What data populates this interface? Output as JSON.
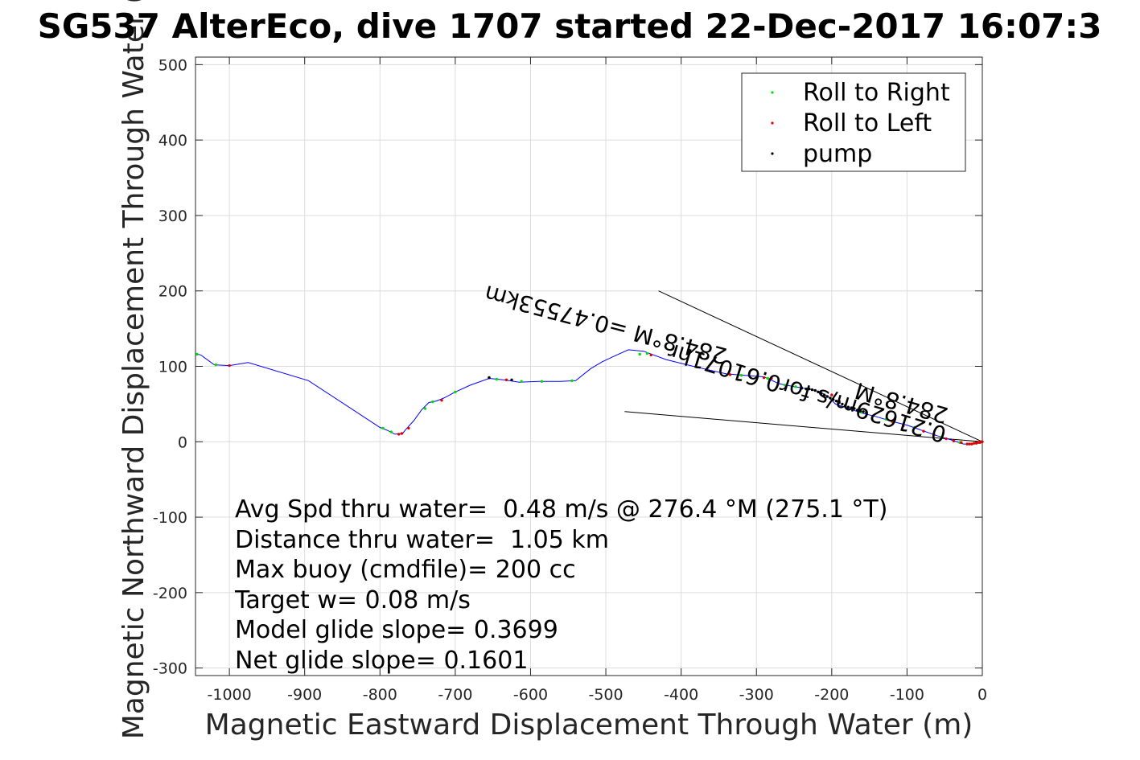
{
  "chart_data": {
    "type": "scatter",
    "title": "SG537 AlterEco, dive 1707 started 22-Dec-2017 16:07:3",
    "xlabel": "Magnetic Eastward Displacement Through Water (m)",
    "ylabel": "Magnetic Northward Displacement Through Water (",
    "xlim": [
      -1045,
      0
    ],
    "ylim": [
      -310,
      510
    ],
    "xticks": [
      -1000,
      -900,
      -800,
      -700,
      -600,
      -500,
      -400,
      -300,
      -200,
      -100,
      0
    ],
    "yticks": [
      500,
      400,
      300,
      200,
      100,
      0,
      -100,
      -200,
      -300
    ],
    "grid": true,
    "legend_position": "top-right",
    "legend": [
      {
        "label": "Roll to Right",
        "color": "#00e000"
      },
      {
        "label": "Roll to Left",
        "color": "#e00000"
      },
      {
        "label": "pump",
        "color": "#000000"
      }
    ],
    "series": [
      {
        "name": "track",
        "style": "line",
        "color": "#0000ff",
        "x": [
          -1045,
          -1038,
          -1020,
          -1000,
          -975,
          -895,
          -800,
          -790,
          -780,
          -770,
          -765,
          -755,
          -745,
          -735,
          -725,
          -715,
          -700,
          -680,
          -655,
          -635,
          -615,
          -590,
          -560,
          -540,
          -520,
          -505,
          -490,
          -470,
          -450,
          -420,
          -380,
          -340,
          -290,
          -270,
          -250,
          -230,
          -215,
          -205,
          -195,
          -180,
          -160,
          -140,
          -120,
          -100,
          -80,
          -60,
          -40,
          -25,
          -15,
          -8,
          -3,
          0
        ],
        "y": [
          117,
          115,
          102,
          101,
          105,
          81,
          19,
          15,
          10,
          11,
          17,
          28,
          42,
          52,
          54,
          58,
          66,
          75,
          84,
          82,
          79,
          80,
          80,
          81,
          97,
          106,
          113,
          122,
          120,
          109,
          99,
          90,
          86,
          77,
          73,
          70,
          66,
          60,
          50,
          45,
          38,
          33,
          27,
          22,
          15,
          8,
          2,
          -3,
          -3,
          -2,
          -1,
          0
        ]
      },
      {
        "name": "Roll to Right",
        "style": "points",
        "color": "#00e000",
        "x": [
          -1043,
          -1018,
          -796,
          -785,
          -740,
          -730,
          -700,
          -645,
          -612,
          -585,
          -545,
          -455,
          -445,
          -320,
          -285,
          -262,
          -248,
          -240,
          -172,
          -160,
          -128,
          -90,
          -55,
          -30
        ],
        "y": [
          116,
          102,
          18,
          13,
          44,
          53,
          66,
          83,
          80,
          80,
          81,
          116,
          117,
          88,
          84,
          75,
          73,
          72,
          43,
          39,
          30,
          19,
          6,
          -1
        ]
      },
      {
        "name": "Roll to Left",
        "style": "points",
        "color": "#e00000",
        "x": [
          -1000,
          -775,
          -771,
          -762,
          -718,
          -655,
          -632,
          -440,
          -335,
          -290,
          -280,
          -200,
          -190,
          -120,
          -105,
          -78,
          -64,
          -48,
          -38,
          -28,
          -20,
          -17,
          -14,
          -11,
          -8,
          -5,
          -3,
          -1,
          0
        ],
        "y": [
          101,
          10,
          11,
          18,
          55,
          85,
          82,
          115,
          89,
          85,
          84,
          62,
          54,
          27,
          21,
          14,
          9,
          4,
          1,
          -1,
          -3,
          -3,
          -3,
          -2,
          -2,
          -1,
          -1,
          0,
          0
        ]
      },
      {
        "name": "pump",
        "style": "points",
        "color": "#000000",
        "x": [
          -655,
          -625,
          -240,
          -234,
          -230,
          -226,
          -222,
          -218,
          -214,
          -210,
          -206,
          -202,
          -198,
          -194,
          -190,
          -186,
          -182,
          -178,
          -174,
          -170,
          -166,
          -162,
          -158,
          -154
        ],
        "y": [
          85,
          82,
          71,
          70,
          70,
          69,
          68,
          66,
          64,
          62,
          60,
          58,
          56,
          54,
          52,
          50,
          48,
          46,
          45,
          44,
          42,
          41,
          40,
          39
        ]
      }
    ],
    "reference_lines": [
      {
        "x": [
          -430,
          0
        ],
        "y": [
          200,
          0
        ]
      },
      {
        "x": [
          -475,
          0
        ],
        "y": [
          40,
          0
        ]
      }
    ],
    "annotations": [
      {
        "text": "Avg Spd thru water=  0.48 m/s @ 276.4 °M (275.1 °T)"
      },
      {
        "text": "Distance thru water=  1.05 km"
      },
      {
        "text": "Max buoy (cmdfile)= 200 cc"
      },
      {
        "text": "Target w= 0.08 m/s"
      },
      {
        "text": "Model glide slope= 0.3699"
      },
      {
        "text": "Net glide slope= 0.1601"
      }
    ],
    "rotated_labels": [
      {
        "text": "284.8°M =0.47553km"
      },
      {
        "text": "0.21629m/s for0.61071hr"
      },
      {
        "text": "284.8°M"
      }
    ]
  }
}
